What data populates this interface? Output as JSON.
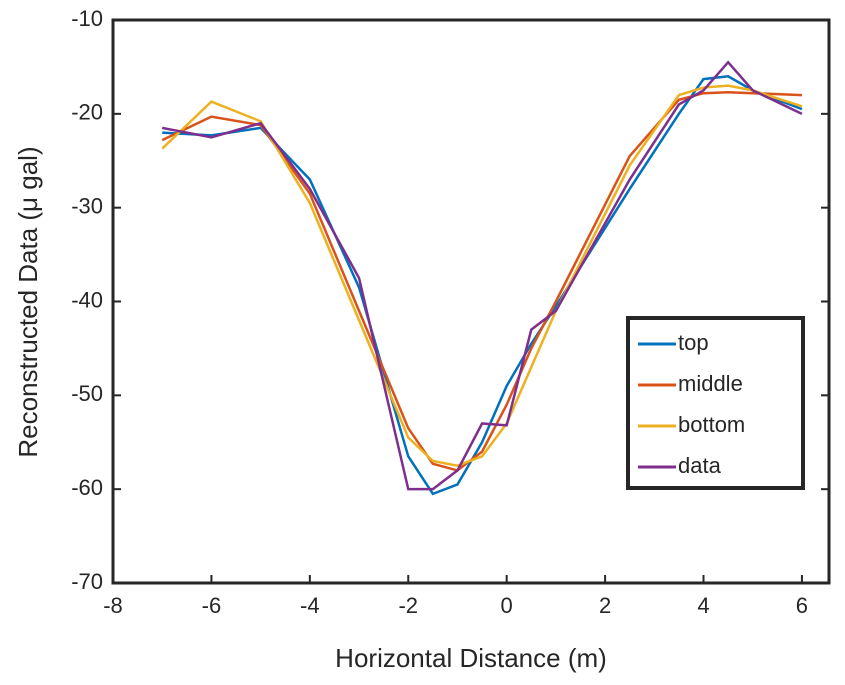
{
  "chart_data": {
    "type": "line",
    "xlabel": "Horizontal Distance (m)",
    "ylabel": "Reconstructed Data (μ gal)",
    "x": [
      -7,
      -6,
      -5,
      -4,
      -3,
      -2,
      -1.5,
      -1,
      -0.5,
      0,
      0.5,
      1,
      2.5,
      3.5,
      4,
      4.5,
      5,
      6
    ],
    "series": [
      {
        "name": "top",
        "color": "#0072bd",
        "values": [
          -22,
          -22.3,
          -21.5,
          -27,
          -38.5,
          -56.5,
          -60.5,
          -59.5,
          -55,
          -49,
          -44.5,
          -40.5,
          -28,
          -20,
          -16.3,
          -16,
          -17.5,
          -19.5
        ]
      },
      {
        "name": "middle",
        "color": "#d95319",
        "values": [
          -22.8,
          -20.3,
          -21.2,
          -28.5,
          -41,
          -53.5,
          -57.3,
          -58,
          -56,
          -51,
          -45,
          -40,
          -24.5,
          -18.5,
          -17.8,
          -17.7,
          -17.8,
          -18
        ]
      },
      {
        "name": "bottom",
        "color": "#edb120",
        "values": [
          -23.7,
          -18.7,
          -20.8,
          -29.5,
          -42,
          -54.5,
          -57,
          -57.5,
          -56.5,
          -53,
          -47,
          -41,
          -25.5,
          -18,
          -17.2,
          -17,
          -17.5,
          -19.2
        ]
      },
      {
        "name": "data",
        "color": "#7e2f8e",
        "values": [
          -21.5,
          -22.5,
          -21,
          -28,
          -37.5,
          -60,
          -60,
          -58,
          -53,
          -53.2,
          -43,
          -41,
          -27,
          -19,
          -17.5,
          -14.5,
          -17.5,
          -20
        ]
      }
    ],
    "xlim": [
      -8,
      6.55
    ],
    "xticks": [
      -8,
      -6,
      -4,
      -2,
      0,
      2,
      4,
      6
    ],
    "ylim": [
      -70,
      -10
    ],
    "yticks": [
      -70,
      -60,
      -50,
      -40,
      -30,
      -20,
      -10
    ],
    "grid": false,
    "legend_position": "east"
  }
}
